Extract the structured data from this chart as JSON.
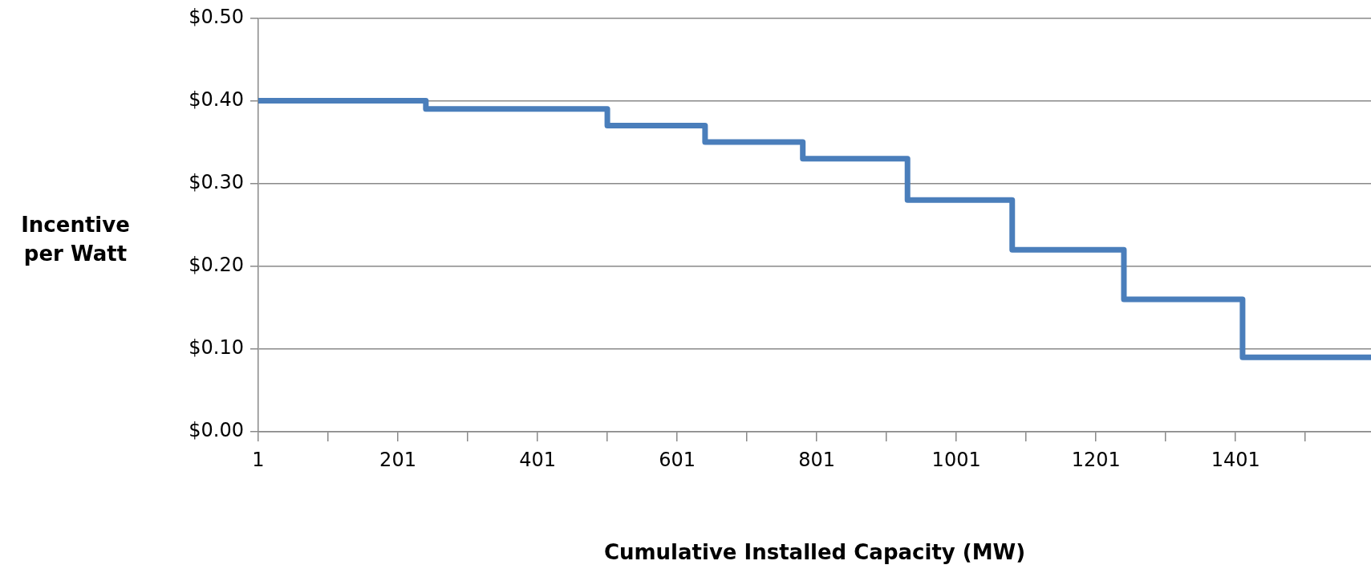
{
  "chart_data": {
    "type": "step",
    "xlabel": "Cumulative Installed Capacity (MW)",
    "ylabel": "Incentive per Watt",
    "x": [
      1,
      241,
      501,
      641,
      781,
      931,
      1081,
      1241,
      1411,
      1595
    ],
    "series": [
      {
        "color": "#4a7ebb",
        "values": [
          0.4,
          0.39,
          0.37,
          0.35,
          0.33,
          0.28,
          0.22,
          0.16,
          0.09,
          0.09
        ]
      }
    ],
    "xlim": [
      1,
      1595
    ],
    "xticks": [
      1,
      {
        "value": 101,
        "label": null
      },
      201,
      {
        "value": 301,
        "label": null
      },
      401,
      {
        "value": 501,
        "label": null
      },
      601,
      {
        "value": 701,
        "label": null
      },
      801,
      {
        "value": 901,
        "label": null
      },
      1001,
      {
        "value": 1101,
        "label": null
      },
      1201,
      {
        "value": 1301,
        "label": null
      },
      1401,
      {
        "value": 1501,
        "label": null
      }
    ],
    "ylim": [
      0,
      0.5
    ],
    "yticks": [
      {
        "value": 0,
        "label": "$0.00"
      },
      {
        "value": 0.1,
        "label": "$0.10"
      },
      {
        "value": 0.2,
        "label": "$0.20"
      },
      {
        "value": 0.3,
        "label": "$0.30"
      },
      {
        "value": 0.4,
        "label": "$0.40"
      },
      {
        "value": 0.5,
        "label": "$0.50"
      }
    ],
    "grid": "y",
    "legend": false,
    "marker": "none",
    "line_style": "solid"
  }
}
